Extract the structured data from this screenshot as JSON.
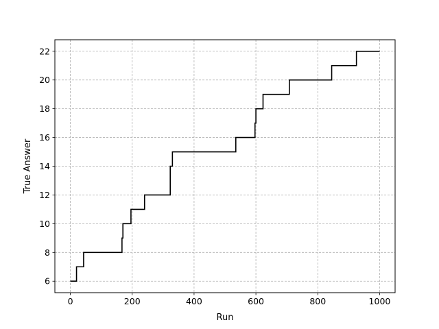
{
  "chart_data": {
    "type": "line",
    "xlabel": "Run",
    "ylabel": "True Answer",
    "xlim": [
      -50,
      1050
    ],
    "ylim": [
      5.2,
      22.8
    ],
    "xticks": [
      0,
      200,
      400,
      600,
      800,
      1000
    ],
    "yticks": [
      6,
      8,
      10,
      12,
      14,
      16,
      18,
      20,
      22
    ],
    "xtick_labels": [
      "0",
      "200",
      "400",
      "600",
      "800",
      "1000"
    ],
    "ytick_labels": [
      "6",
      "8",
      "10",
      "12",
      "14",
      "16",
      "18",
      "20",
      "22"
    ],
    "grid": true,
    "series": [
      {
        "color": "#000000",
        "step": "post",
        "x": [
          0,
          20,
          43,
          167,
          170,
          196,
          240,
          323,
          330,
          535,
          597,
          600,
          623,
          708,
          845,
          925,
          1000
        ],
        "y": [
          6,
          7,
          8,
          9,
          10,
          11,
          12,
          14,
          15,
          16,
          17,
          18,
          19,
          20,
          21,
          22,
          22
        ]
      }
    ]
  }
}
